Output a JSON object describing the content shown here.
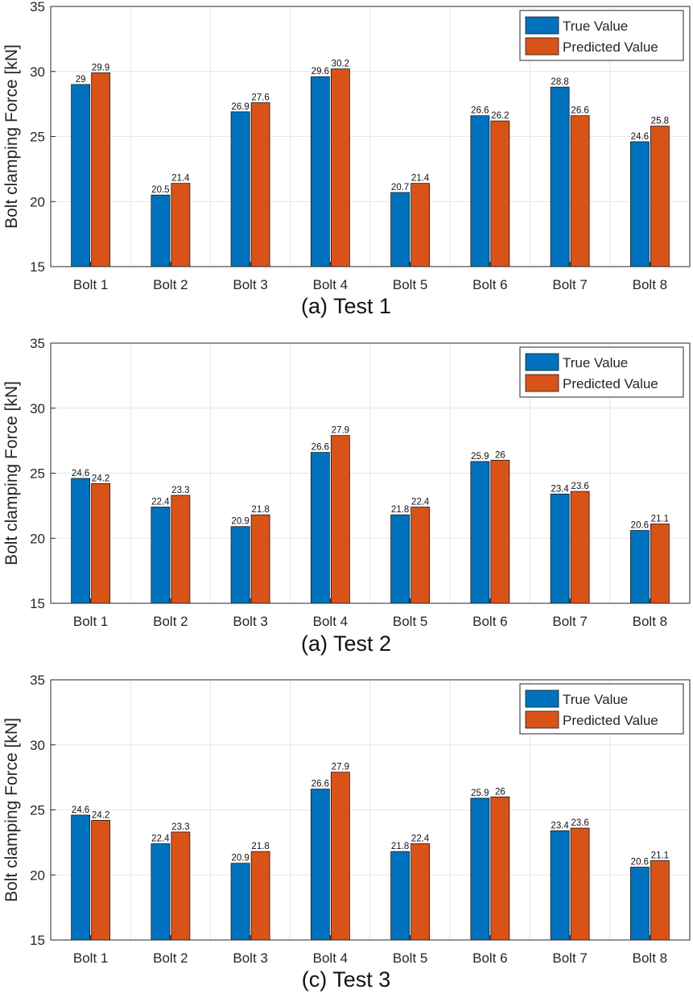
{
  "chart_data": [
    {
      "type": "bar",
      "caption": "(a) Test 1",
      "ylabel": "Bolt clamping Force [kN]",
      "xlabel": "",
      "ylim": [
        15,
        35
      ],
      "yticks": [
        15,
        20,
        25,
        30,
        35
      ],
      "grid": true,
      "legend_position": "top-right",
      "categories": [
        "Bolt 1",
        "Bolt 2",
        "Bolt 3",
        "Bolt 4",
        "Bolt 5",
        "Bolt 6",
        "Bolt 7",
        "Bolt 8"
      ],
      "series": [
        {
          "name": "True Value",
          "color": "#0072BD",
          "values": [
            29,
            20.5,
            26.9,
            29.6,
            20.7,
            26.6,
            28.8,
            24.6
          ]
        },
        {
          "name": "Predicted Value",
          "color": "#D95319",
          "values": [
            29.9,
            21.4,
            27.6,
            30.2,
            21.4,
            26.2,
            26.6,
            25.8
          ]
        }
      ]
    },
    {
      "type": "bar",
      "caption": "(a) Test 2",
      "ylabel": "Bolt clamping Force [kN]",
      "xlabel": "",
      "ylim": [
        15,
        35
      ],
      "yticks": [
        15,
        20,
        25,
        30,
        35
      ],
      "grid": true,
      "legend_position": "top-right",
      "categories": [
        "Bolt 1",
        "Bolt 2",
        "Bolt 3",
        "Bolt 4",
        "Bolt 5",
        "Bolt 6",
        "Bolt 7",
        "Bolt 8"
      ],
      "series": [
        {
          "name": "True Value",
          "color": "#0072BD",
          "values": [
            24.6,
            22.4,
            20.9,
            26.6,
            21.8,
            25.9,
            23.4,
            20.6
          ]
        },
        {
          "name": "Predicted Value",
          "color": "#D95319",
          "values": [
            24.2,
            23.3,
            21.8,
            27.9,
            22.4,
            26,
            23.6,
            21.1
          ]
        }
      ]
    },
    {
      "type": "bar",
      "caption": "(c) Test 3",
      "ylabel": "Bolt clamping Force [kN]",
      "xlabel": "",
      "ylim": [
        15,
        35
      ],
      "yticks": [
        15,
        20,
        25,
        30,
        35
      ],
      "grid": true,
      "legend_position": "top-right",
      "categories": [
        "Bolt 1",
        "Bolt 2",
        "Bolt 3",
        "Bolt 4",
        "Bolt 5",
        "Bolt 6",
        "Bolt 7",
        "Bolt 8"
      ],
      "series": [
        {
          "name": "True Value",
          "color": "#0072BD",
          "values": [
            24.6,
            22.4,
            20.9,
            26.6,
            21.8,
            25.9,
            23.4,
            20.6
          ]
        },
        {
          "name": "Predicted Value",
          "color": "#D95319",
          "values": [
            24.2,
            23.3,
            21.8,
            27.9,
            22.4,
            26,
            23.6,
            21.1
          ]
        }
      ]
    }
  ]
}
